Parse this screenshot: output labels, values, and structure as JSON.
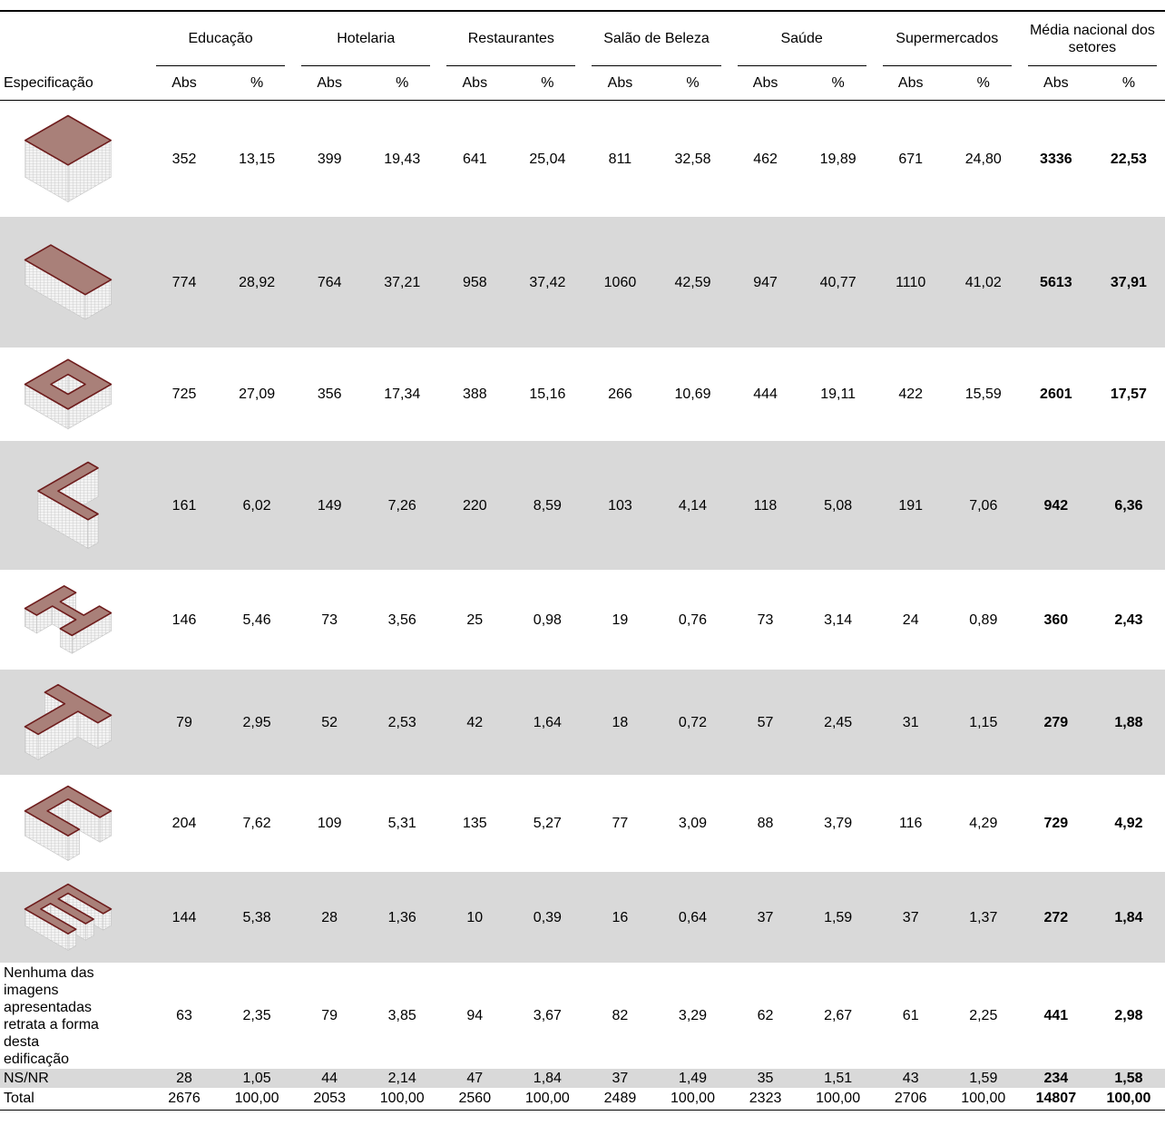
{
  "header": {
    "spec": "Especificação",
    "groups": [
      "Educação",
      "Hotelaria",
      "Restaurantes",
      "Salão de Beleza",
      "Saúde",
      "Supermercados",
      "Média nacional dos setores"
    ],
    "subheaders": [
      "Abs",
      "%"
    ]
  },
  "rows": [
    {
      "cells": [
        "352",
        "13,15",
        "399",
        "19,43",
        "641",
        "25,04",
        "811",
        "32,58",
        "462",
        "19,89",
        "671",
        "24,80",
        "3336",
        "22,53"
      ]
    },
    {
      "cells": [
        "774",
        "28,92",
        "764",
        "37,21",
        "958",
        "37,42",
        "1060",
        "42,59",
        "947",
        "40,77",
        "1110",
        "41,02",
        "5613",
        "37,91"
      ]
    },
    {
      "cells": [
        "725",
        "27,09",
        "356",
        "17,34",
        "388",
        "15,16",
        "266",
        "10,69",
        "444",
        "19,11",
        "422",
        "15,59",
        "2601",
        "17,57"
      ]
    },
    {
      "cells": [
        "161",
        "6,02",
        "149",
        "7,26",
        "220",
        "8,59",
        "103",
        "4,14",
        "118",
        "5,08",
        "191",
        "7,06",
        "942",
        "6,36"
      ]
    },
    {
      "cells": [
        "146",
        "5,46",
        "73",
        "3,56",
        "25",
        "0,98",
        "19",
        "0,76",
        "73",
        "3,14",
        "24",
        "0,89",
        "360",
        "2,43"
      ]
    },
    {
      "cells": [
        "79",
        "2,95",
        "52",
        "2,53",
        "42",
        "1,64",
        "18",
        "0,72",
        "57",
        "2,45",
        "31",
        "1,15",
        "279",
        "1,88"
      ]
    },
    {
      "cells": [
        "204",
        "7,62",
        "109",
        "5,31",
        "135",
        "5,27",
        "77",
        "3,09",
        "88",
        "3,79",
        "116",
        "4,29",
        "729",
        "4,92"
      ]
    },
    {
      "cells": [
        "144",
        "5,38",
        "28",
        "1,36",
        "10",
        "0,39",
        "16",
        "0,64",
        "37",
        "1,59",
        "37",
        "1,37",
        "272",
        "1,84"
      ]
    },
    {
      "label": "Nenhuma das imagens apresentadas retrata a forma desta edificação",
      "cells": [
        "63",
        "2,35",
        "79",
        "3,85",
        "94",
        "3,67",
        "82",
        "3,29",
        "62",
        "2,67",
        "61",
        "2,25",
        "441",
        "2,98"
      ]
    },
    {
      "label": "NS/NR",
      "cells": [
        "28",
        "1,05",
        "44",
        "2,14",
        "47",
        "1,84",
        "37",
        "1,49",
        "35",
        "1,51",
        "43",
        "1,59",
        "234",
        "1,58"
      ]
    },
    {
      "label": "Total",
      "cells": [
        "2676",
        "100,00",
        "2053",
        "100,00",
        "2560",
        "100,00",
        "2489",
        "100,00",
        "2323",
        "100,00",
        "2706",
        "100,00",
        "14807",
        "100,00"
      ]
    }
  ]
}
